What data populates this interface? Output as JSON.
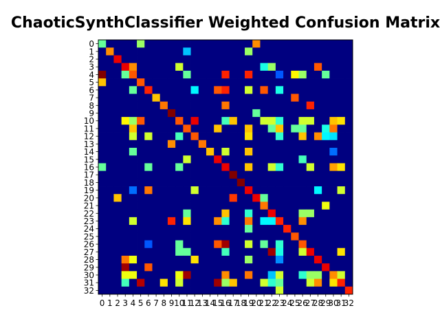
{
  "chart_data": {
    "type": "heatmap",
    "title": "ChaoticSynthClassifier Weighted Confusion Matrix",
    "colormap": "jet",
    "x_categories": [
      "0",
      "1",
      "2",
      "3",
      "4",
      "5",
      "6",
      "7",
      "8",
      "9",
      "10",
      "11",
      "12",
      "13",
      "14",
      "15",
      "16",
      "17",
      "18",
      "19",
      "20",
      "21",
      "22",
      "23",
      "24",
      "25",
      "26",
      "27",
      "28",
      "29",
      "30",
      "31",
      "32"
    ],
    "y_categories": [
      "0",
      "1",
      "2",
      "3",
      "4",
      "5",
      "6",
      "7",
      "8",
      "9",
      "10",
      "11",
      "12",
      "13",
      "14",
      "15",
      "16",
      "17",
      "18",
      "19",
      "20",
      "21",
      "22",
      "23",
      "24",
      "25",
      "26",
      "27",
      "28",
      "29",
      "30",
      "31",
      "32"
    ],
    "values": [
      [
        0.45,
        0,
        0,
        0,
        0,
        0.5,
        0,
        0,
        0,
        0,
        0,
        0,
        0,
        0,
        0,
        0,
        0,
        0,
        0,
        0,
        0.7,
        0,
        0,
        0,
        0,
        0,
        0,
        0,
        0,
        0,
        0,
        0,
        0
      ],
      [
        0,
        0.7,
        0,
        0,
        0,
        0,
        0,
        0,
        0,
        0,
        0,
        0.3,
        0,
        0,
        0,
        0,
        0,
        0,
        0,
        0.5,
        0,
        0,
        0,
        0,
        0,
        0,
        0,
        0,
        0,
        0,
        0,
        0,
        0
      ],
      [
        0,
        0,
        0.85,
        0,
        0,
        0,
        0,
        0,
        0,
        0,
        0,
        0,
        0,
        0,
        0,
        0,
        0,
        0,
        0,
        0,
        0,
        0,
        0,
        0,
        0,
        0,
        0,
        0,
        0,
        0,
        0,
        0,
        0
      ],
      [
        0,
        0,
        0,
        0.85,
        0.7,
        0,
        0,
        0,
        0,
        0,
        0.55,
        0,
        0,
        0,
        0,
        0,
        0,
        0,
        0,
        0,
        0,
        0.38,
        0.5,
        0,
        0,
        0,
        0,
        0,
        0.75,
        0,
        0,
        0,
        0
      ],
      [
        0.95,
        0,
        0,
        0.45,
        0.75,
        0,
        0,
        0,
        0,
        0,
        0,
        0.45,
        0,
        0,
        0,
        0,
        0.8,
        0,
        0,
        0.8,
        0,
        0,
        0,
        0.2,
        0,
        0.6,
        0.5,
        0,
        0,
        0.45,
        0,
        0,
        0
      ],
      [
        0.65,
        0,
        0,
        0,
        0,
        0.75,
        0,
        0,
        0,
        0,
        0,
        0,
        0,
        0,
        0,
        0,
        0,
        0,
        0,
        0,
        0,
        0,
        0,
        0,
        0,
        0,
        0,
        0,
        0,
        0,
        0,
        0,
        0
      ],
      [
        0,
        0,
        0,
        0,
        0.45,
        0,
        0.8,
        0,
        0,
        0,
        0,
        0,
        0.35,
        0,
        0,
        0.75,
        0.8,
        0,
        0,
        0.55,
        0,
        0.75,
        0,
        0.38,
        0,
        0,
        0,
        0,
        0,
        0,
        0,
        0,
        0
      ],
      [
        0,
        0,
        0,
        0,
        0,
        0,
        0,
        0.65,
        0,
        0,
        0,
        0,
        0,
        0,
        0,
        0,
        0,
        0,
        0,
        0,
        0,
        0,
        0,
        0,
        0,
        0.75,
        0,
        0,
        0,
        0,
        0,
        0,
        0
      ],
      [
        0,
        0,
        0,
        0,
        0,
        0,
        0,
        0,
        0.72,
        0,
        0,
        0,
        0,
        0,
        0,
        0,
        0.72,
        0,
        0,
        0,
        0,
        0,
        0,
        0,
        0,
        0,
        0,
        0.8,
        0,
        0,
        0,
        0,
        0
      ],
      [
        0,
        0,
        0,
        0,
        0,
        0,
        0,
        0,
        0,
        0.95,
        0,
        0,
        0,
        0,
        0,
        0,
        0,
        0,
        0,
        0,
        0.45,
        0,
        0,
        0,
        0,
        0,
        0,
        0,
        0,
        0,
        0,
        0,
        0
      ],
      [
        0,
        0,
        0,
        0.6,
        0.5,
        0.75,
        0,
        0,
        0,
        0,
        0.75,
        0,
        0.85,
        0,
        0,
        0,
        0.42,
        0.65,
        0,
        0,
        0,
        0.55,
        0.55,
        0.4,
        0,
        0,
        0.55,
        0.55,
        0,
        0,
        0.65,
        0.62,
        0
      ],
      [
        0,
        0,
        0,
        0,
        0.65,
        0,
        0,
        0,
        0,
        0,
        0,
        0.75,
        0,
        0,
        0,
        0.65,
        0,
        0,
        0,
        0.65,
        0,
        0,
        0.45,
        0.65,
        0,
        0.45,
        0.45,
        0,
        0,
        0.38,
        0.72,
        0,
        0
      ],
      [
        0,
        0,
        0,
        0,
        0.55,
        0,
        0.55,
        0,
        0,
        0,
        0.42,
        0,
        0.75,
        0,
        0,
        0,
        0,
        0,
        0,
        0.62,
        0,
        0,
        0,
        0.4,
        0,
        0,
        0.65,
        0,
        0.7,
        0.35,
        0.33,
        0,
        0
      ],
      [
        0,
        0,
        0,
        0,
        0,
        0,
        0,
        0,
        0,
        0.7,
        0,
        0,
        0,
        0.72,
        0,
        0,
        0,
        0,
        0,
        0,
        0,
        0,
        0,
        0,
        0,
        0,
        0,
        0,
        0,
        0,
        0,
        0,
        0
      ],
      [
        0,
        0,
        0,
        0,
        0.45,
        0,
        0,
        0,
        0,
        0,
        0,
        0,
        0,
        0,
        0.65,
        0,
        0.55,
        0,
        0,
        0.65,
        0,
        0,
        0,
        0,
        0,
        0,
        0,
        0,
        0,
        0,
        0.22,
        0,
        0
      ],
      [
        0,
        0,
        0,
        0,
        0,
        0,
        0,
        0,
        0,
        0,
        0,
        0.55,
        0,
        0,
        0,
        0.85,
        0,
        0,
        0,
        0,
        0,
        0,
        0,
        0,
        0,
        0,
        0.42,
        0,
        0,
        0,
        0,
        0,
        0
      ],
      [
        0.45,
        0,
        0,
        0,
        0,
        0,
        0.45,
        0,
        0,
        0,
        0.45,
        0,
        0,
        0,
        0,
        0,
        0.85,
        0,
        0,
        0.65,
        0,
        0,
        0.55,
        0.4,
        0,
        0,
        0,
        0.55,
        0,
        0,
        0.68,
        0.62,
        0
      ],
      [
        0,
        0,
        0,
        0,
        0,
        0,
        0,
        0,
        0,
        0,
        0,
        0,
        0,
        0,
        0,
        0,
        0,
        0.95,
        0,
        0,
        0,
        0,
        0,
        0,
        0,
        0,
        0,
        0,
        0,
        0,
        0,
        0,
        0
      ],
      [
        0,
        0,
        0,
        0,
        0,
        0,
        0,
        0,
        0,
        0,
        0,
        0,
        0,
        0,
        0,
        0,
        0,
        0,
        0.95,
        0,
        0,
        0,
        0,
        0,
        0,
        0,
        0,
        0,
        0,
        0,
        0,
        0,
        0
      ],
      [
        0,
        0,
        0,
        0,
        0.22,
        0,
        0.72,
        0,
        0,
        0,
        0,
        0,
        0.55,
        0,
        0,
        0,
        0,
        0,
        0,
        0.85,
        0,
        0,
        0,
        0,
        0,
        0,
        0,
        0,
        0.35,
        0,
        0,
        0.55,
        0
      ],
      [
        0,
        0,
        0.65,
        0,
        0,
        0,
        0,
        0,
        0,
        0,
        0,
        0,
        0,
        0,
        0,
        0,
        0,
        0.78,
        0,
        0,
        0.85,
        0.45,
        0,
        0,
        0,
        0,
        0,
        0,
        0,
        0,
        0,
        0,
        0
      ],
      [
        0,
        0,
        0,
        0,
        0,
        0,
        0,
        0,
        0,
        0,
        0,
        0,
        0,
        0,
        0,
        0,
        0,
        0,
        0,
        0,
        0,
        0.72,
        0,
        0,
        0,
        0,
        0,
        0,
        0,
        0.58,
        0,
        0,
        0
      ],
      [
        0,
        0,
        0,
        0,
        0,
        0,
        0,
        0,
        0,
        0,
        0,
        0.45,
        0,
        0,
        0,
        0,
        0.65,
        0,
        0,
        0.4,
        0,
        0,
        0.85,
        0,
        0,
        0,
        0.5,
        0.5,
        0,
        0,
        0,
        0,
        0
      ],
      [
        0,
        0,
        0,
        0,
        0.55,
        0,
        0,
        0,
        0,
        0.8,
        0,
        0.62,
        0,
        0,
        0,
        0.7,
        0.4,
        0,
        0,
        0.72,
        0,
        0.35,
        0.35,
        0.8,
        0,
        0,
        0.7,
        0,
        0,
        0,
        0,
        0,
        0
      ],
      [
        0,
        0,
        0,
        0,
        0,
        0,
        0,
        0,
        0,
        0,
        0,
        0,
        0,
        0,
        0,
        0,
        0,
        0,
        0,
        0.45,
        0,
        0,
        0,
        0,
        0.8,
        0,
        0,
        0,
        0,
        0,
        0,
        0,
        0
      ],
      [
        0,
        0,
        0,
        0,
        0,
        0,
        0,
        0,
        0,
        0,
        0,
        0,
        0,
        0,
        0,
        0,
        0,
        0,
        0,
        0,
        0,
        0,
        0,
        0,
        0,
        0.75,
        0,
        0,
        0,
        0,
        0,
        0,
        0
      ],
      [
        0,
        0,
        0,
        0,
        0,
        0,
        0.2,
        0,
        0,
        0,
        0.45,
        0,
        0,
        0,
        0,
        0.75,
        0.92,
        0,
        0,
        0.55,
        0,
        0.45,
        0,
        0.4,
        0,
        0,
        0.75,
        0,
        0,
        0,
        0,
        0,
        0
      ],
      [
        0,
        0,
        0,
        0,
        0,
        0,
        0,
        0,
        0,
        0,
        0.45,
        0.45,
        0,
        0,
        0,
        0,
        0.42,
        0,
        0,
        0,
        0,
        0,
        0.92,
        0.38,
        0,
        0,
        0.55,
        0.85,
        0,
        0,
        0,
        0.62,
        0
      ],
      [
        0,
        0,
        0,
        0.72,
        0.58,
        0,
        0,
        0,
        0,
        0,
        0,
        0,
        0.62,
        0,
        0,
        0,
        0,
        0,
        0,
        0.5,
        0,
        0,
        0,
        0.25,
        0,
        0,
        0,
        0,
        0.85,
        0,
        0,
        0,
        0
      ],
      [
        0,
        0,
        0,
        0.92,
        0,
        0,
        0.75,
        0,
        0,
        0,
        0,
        0,
        0,
        0,
        0,
        0,
        0,
        0,
        0,
        0,
        0,
        0,
        0,
        0,
        0,
        0,
        0,
        0,
        0,
        0.85,
        0,
        0,
        0
      ],
      [
        0,
        0,
        0,
        0.58,
        0.58,
        0,
        0,
        0,
        0,
        0,
        0.58,
        0.92,
        0,
        0,
        0,
        0,
        0.7,
        0,
        0,
        0.72,
        0,
        0,
        0.3,
        0.55,
        0,
        0,
        0.4,
        0.5,
        0.5,
        0,
        0.7,
        0.55,
        0
      ],
      [
        0,
        0,
        0,
        0.42,
        0,
        0.9,
        0,
        0,
        0.62,
        0,
        0.55,
        0,
        0,
        0,
        0,
        0.92,
        0.5,
        0.65,
        0,
        0,
        0,
        0.55,
        0.4,
        0.45,
        0,
        0,
        0,
        0.55,
        0.7,
        0,
        0.62,
        0.8,
        0
      ],
      [
        0,
        0,
        0,
        0,
        0,
        0,
        0,
        0,
        0,
        0,
        0,
        0,
        0,
        0,
        0,
        0,
        0,
        0,
        0,
        0,
        0,
        0,
        0,
        0.55,
        0,
        0,
        0,
        0,
        0,
        0,
        0,
        0,
        0.8
      ]
    ]
  }
}
